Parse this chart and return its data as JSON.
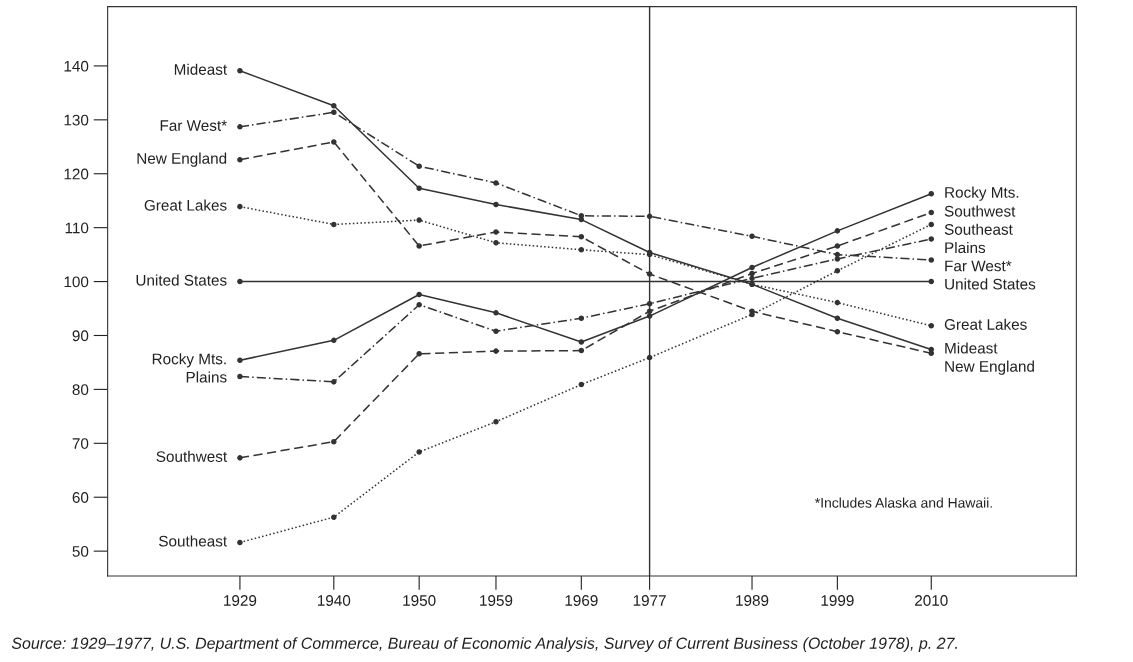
{
  "chart_data": {
    "type": "line",
    "annotations": [
      "*Includes Alaska and Hawaii.",
      "Source: 1929–1977, U.S. Department of Commerce, Bureau of Economic Analysis, Survey of Current Business (October 1978), p. 27."
    ],
    "x": [
      1929,
      1940,
      1950,
      1959,
      1969,
      1977,
      1989,
      1999,
      2010
    ],
    "series": [
      {
        "name": "Mideast",
        "color": "#333333",
        "line_style": "solid",
        "values": [
          139.1,
          132.6,
          117.3,
          114.3,
          111.5,
          105.4,
          99.5,
          93.2,
          87.4
        ]
      },
      {
        "name": "Far West*",
        "color": "#333333",
        "line_style": "dashdot",
        "values": [
          128.7,
          131.4,
          121.4,
          118.3,
          112.2,
          112.1,
          108.4,
          105.0,
          104.0
        ]
      },
      {
        "name": "New England",
        "color": "#333333",
        "line_style": "dashed",
        "values": [
          122.6,
          125.9,
          106.6,
          109.2,
          108.3,
          101.4,
          94.5,
          90.7,
          86.7
        ]
      },
      {
        "name": "Great Lakes",
        "color": "#333333",
        "line_style": "dotted",
        "values": [
          113.9,
          110.6,
          111.4,
          107.2,
          105.9,
          105.0,
          99.5,
          96.1,
          91.8
        ]
      },
      {
        "name": "United States",
        "color": "#333333",
        "line_style": "solid",
        "x": [
          1929,
          2010
        ],
        "values": [
          100,
          100
        ]
      },
      {
        "name": "Rocky Mts.",
        "color": "#333333",
        "line_style": "solid",
        "values": [
          85.4,
          89.1,
          97.6,
          94.2,
          88.8,
          93.6,
          102.6,
          109.4,
          116.3
        ]
      },
      {
        "name": "Plains",
        "color": "#333333",
        "line_style": "dashdot",
        "values": [
          82.4,
          81.4,
          95.7,
          90.8,
          93.2,
          95.9,
          100.6,
          104.2,
          107.9
        ]
      },
      {
        "name": "Southwest",
        "color": "#333333",
        "line_style": "dashed",
        "values": [
          67.3,
          70.3,
          86.6,
          87.1,
          87.2,
          94.5,
          101.5,
          106.6,
          112.8
        ]
      },
      {
        "name": "Southeast",
        "color": "#333333",
        "line_style": "dotted",
        "values": [
          51.6,
          56.3,
          68.4,
          74.0,
          80.9,
          85.9,
          93.9,
          102.0,
          110.6
        ]
      }
    ],
    "xlim": [
      1913.5,
      2027
    ],
    "ylim": [
      45.4,
      151
    ],
    "xticks": [
      1929,
      1940,
      1950,
      1959,
      1969,
      1977,
      1989,
      1999,
      2010
    ],
    "yticks": [
      50,
      60,
      70,
      80,
      90,
      100,
      110,
      120,
      130,
      140
    ],
    "ref_lines": [
      {
        "axis": "x",
        "value": 1977,
        "color": "#333333"
      }
    ],
    "grid": false,
    "legend": false,
    "marker": "circle"
  }
}
